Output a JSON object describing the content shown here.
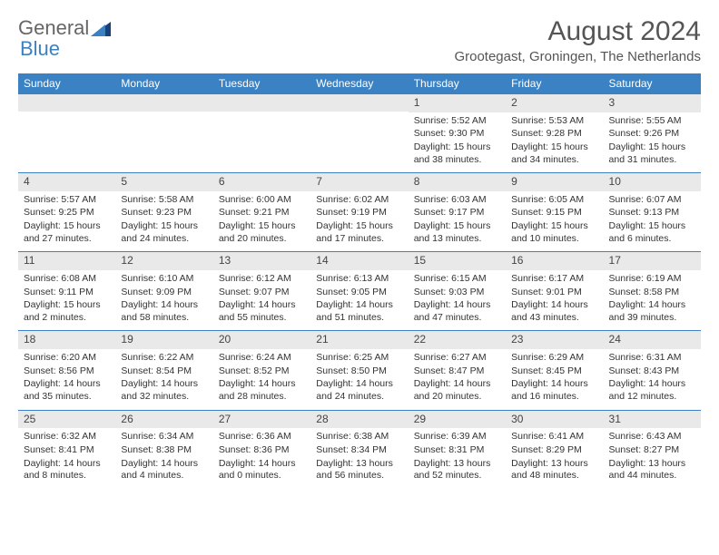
{
  "logo": {
    "text1": "General",
    "text2": "Blue",
    "accent_color": "#3b82c4"
  },
  "header": {
    "month_title": "August 2024",
    "location": "Grootegast, Groningen, The Netherlands"
  },
  "day_labels": [
    "Sunday",
    "Monday",
    "Tuesday",
    "Wednesday",
    "Thursday",
    "Friday",
    "Saturday"
  ],
  "colors": {
    "header_bg": "#3b82c4",
    "header_text": "#ffffff",
    "daynum_bg": "#e9e9e9",
    "border": "#3b82c4",
    "text": "#333333"
  },
  "weeks": [
    [
      {
        "empty": true
      },
      {
        "empty": true
      },
      {
        "empty": true
      },
      {
        "empty": true
      },
      {
        "n": "1",
        "sunrise": "Sunrise: 5:52 AM",
        "sunset": "Sunset: 9:30 PM",
        "daylight": "Daylight: 15 hours and 38 minutes."
      },
      {
        "n": "2",
        "sunrise": "Sunrise: 5:53 AM",
        "sunset": "Sunset: 9:28 PM",
        "daylight": "Daylight: 15 hours and 34 minutes."
      },
      {
        "n": "3",
        "sunrise": "Sunrise: 5:55 AM",
        "sunset": "Sunset: 9:26 PM",
        "daylight": "Daylight: 15 hours and 31 minutes."
      }
    ],
    [
      {
        "n": "4",
        "sunrise": "Sunrise: 5:57 AM",
        "sunset": "Sunset: 9:25 PM",
        "daylight": "Daylight: 15 hours and 27 minutes."
      },
      {
        "n": "5",
        "sunrise": "Sunrise: 5:58 AM",
        "sunset": "Sunset: 9:23 PM",
        "daylight": "Daylight: 15 hours and 24 minutes."
      },
      {
        "n": "6",
        "sunrise": "Sunrise: 6:00 AM",
        "sunset": "Sunset: 9:21 PM",
        "daylight": "Daylight: 15 hours and 20 minutes."
      },
      {
        "n": "7",
        "sunrise": "Sunrise: 6:02 AM",
        "sunset": "Sunset: 9:19 PM",
        "daylight": "Daylight: 15 hours and 17 minutes."
      },
      {
        "n": "8",
        "sunrise": "Sunrise: 6:03 AM",
        "sunset": "Sunset: 9:17 PM",
        "daylight": "Daylight: 15 hours and 13 minutes."
      },
      {
        "n": "9",
        "sunrise": "Sunrise: 6:05 AM",
        "sunset": "Sunset: 9:15 PM",
        "daylight": "Daylight: 15 hours and 10 minutes."
      },
      {
        "n": "10",
        "sunrise": "Sunrise: 6:07 AM",
        "sunset": "Sunset: 9:13 PM",
        "daylight": "Daylight: 15 hours and 6 minutes."
      }
    ],
    [
      {
        "n": "11",
        "sunrise": "Sunrise: 6:08 AM",
        "sunset": "Sunset: 9:11 PM",
        "daylight": "Daylight: 15 hours and 2 minutes."
      },
      {
        "n": "12",
        "sunrise": "Sunrise: 6:10 AM",
        "sunset": "Sunset: 9:09 PM",
        "daylight": "Daylight: 14 hours and 58 minutes."
      },
      {
        "n": "13",
        "sunrise": "Sunrise: 6:12 AM",
        "sunset": "Sunset: 9:07 PM",
        "daylight": "Daylight: 14 hours and 55 minutes."
      },
      {
        "n": "14",
        "sunrise": "Sunrise: 6:13 AM",
        "sunset": "Sunset: 9:05 PM",
        "daylight": "Daylight: 14 hours and 51 minutes."
      },
      {
        "n": "15",
        "sunrise": "Sunrise: 6:15 AM",
        "sunset": "Sunset: 9:03 PM",
        "daylight": "Daylight: 14 hours and 47 minutes."
      },
      {
        "n": "16",
        "sunrise": "Sunrise: 6:17 AM",
        "sunset": "Sunset: 9:01 PM",
        "daylight": "Daylight: 14 hours and 43 minutes."
      },
      {
        "n": "17",
        "sunrise": "Sunrise: 6:19 AM",
        "sunset": "Sunset: 8:58 PM",
        "daylight": "Daylight: 14 hours and 39 minutes."
      }
    ],
    [
      {
        "n": "18",
        "sunrise": "Sunrise: 6:20 AM",
        "sunset": "Sunset: 8:56 PM",
        "daylight": "Daylight: 14 hours and 35 minutes."
      },
      {
        "n": "19",
        "sunrise": "Sunrise: 6:22 AM",
        "sunset": "Sunset: 8:54 PM",
        "daylight": "Daylight: 14 hours and 32 minutes."
      },
      {
        "n": "20",
        "sunrise": "Sunrise: 6:24 AM",
        "sunset": "Sunset: 8:52 PM",
        "daylight": "Daylight: 14 hours and 28 minutes."
      },
      {
        "n": "21",
        "sunrise": "Sunrise: 6:25 AM",
        "sunset": "Sunset: 8:50 PM",
        "daylight": "Daylight: 14 hours and 24 minutes."
      },
      {
        "n": "22",
        "sunrise": "Sunrise: 6:27 AM",
        "sunset": "Sunset: 8:47 PM",
        "daylight": "Daylight: 14 hours and 20 minutes."
      },
      {
        "n": "23",
        "sunrise": "Sunrise: 6:29 AM",
        "sunset": "Sunset: 8:45 PM",
        "daylight": "Daylight: 14 hours and 16 minutes."
      },
      {
        "n": "24",
        "sunrise": "Sunrise: 6:31 AM",
        "sunset": "Sunset: 8:43 PM",
        "daylight": "Daylight: 14 hours and 12 minutes."
      }
    ],
    [
      {
        "n": "25",
        "sunrise": "Sunrise: 6:32 AM",
        "sunset": "Sunset: 8:41 PM",
        "daylight": "Daylight: 14 hours and 8 minutes."
      },
      {
        "n": "26",
        "sunrise": "Sunrise: 6:34 AM",
        "sunset": "Sunset: 8:38 PM",
        "daylight": "Daylight: 14 hours and 4 minutes."
      },
      {
        "n": "27",
        "sunrise": "Sunrise: 6:36 AM",
        "sunset": "Sunset: 8:36 PM",
        "daylight": "Daylight: 14 hours and 0 minutes."
      },
      {
        "n": "28",
        "sunrise": "Sunrise: 6:38 AM",
        "sunset": "Sunset: 8:34 PM",
        "daylight": "Daylight: 13 hours and 56 minutes."
      },
      {
        "n": "29",
        "sunrise": "Sunrise: 6:39 AM",
        "sunset": "Sunset: 8:31 PM",
        "daylight": "Daylight: 13 hours and 52 minutes."
      },
      {
        "n": "30",
        "sunrise": "Sunrise: 6:41 AM",
        "sunset": "Sunset: 8:29 PM",
        "daylight": "Daylight: 13 hours and 48 minutes."
      },
      {
        "n": "31",
        "sunrise": "Sunrise: 6:43 AM",
        "sunset": "Sunset: 8:27 PM",
        "daylight": "Daylight: 13 hours and 44 minutes."
      }
    ]
  ]
}
